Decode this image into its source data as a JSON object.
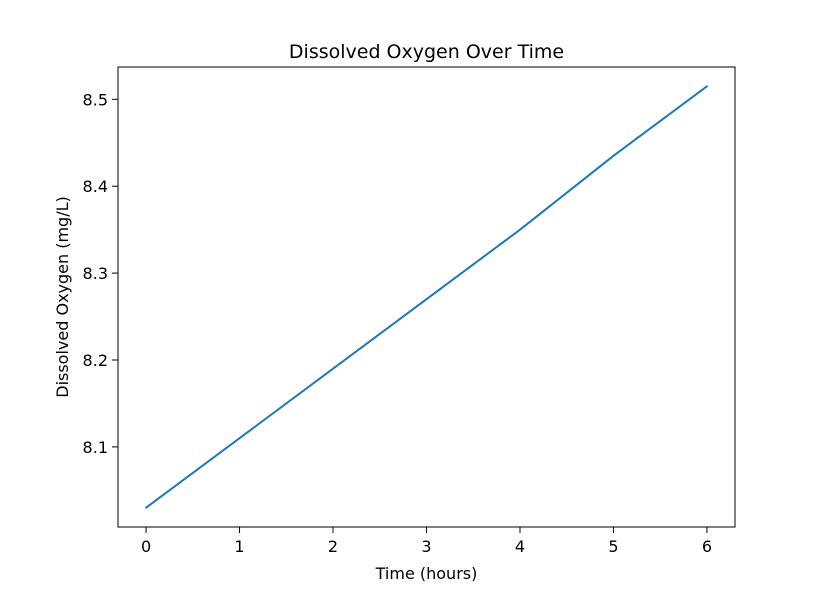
{
  "chart_data": {
    "type": "line",
    "title": "Dissolved Oxygen Over Time",
    "xlabel": "Time (hours)",
    "ylabel": "Dissolved Oxygen (mg/L)",
    "xlim": [
      -0.3,
      6.3
    ],
    "ylim": [
      8.0078,
      8.5372
    ],
    "x_ticks": [
      0,
      1,
      2,
      3,
      4,
      5,
      6
    ],
    "y_ticks": [
      8.1,
      8.2,
      8.3,
      8.4,
      8.5
    ],
    "x_tick_labels": [
      "0",
      "1",
      "2",
      "3",
      "4",
      "5",
      "6"
    ],
    "y_tick_labels": [
      "8.1",
      "8.2",
      "8.3",
      "8.4",
      "8.5"
    ],
    "grid": false,
    "legend": "none",
    "series": [
      {
        "color": "#1f77b4",
        "x": [
          0,
          1,
          2,
          3,
          4,
          5,
          6
        ],
        "y": [
          8.03,
          8.11,
          8.19,
          8.27,
          8.35,
          8.435,
          8.515
        ]
      }
    ]
  }
}
